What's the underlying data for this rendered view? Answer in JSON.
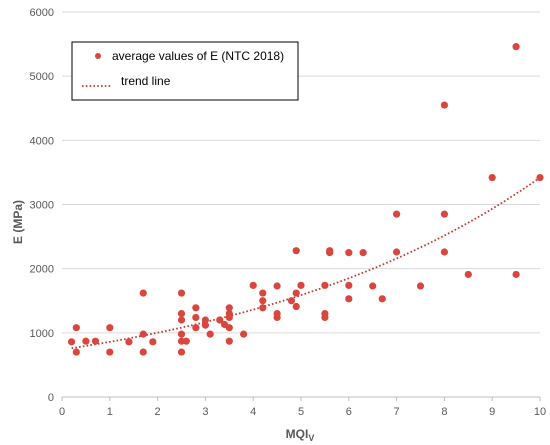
{
  "chart_data": {
    "type": "scatter",
    "xlabel": "MQI",
    "xlabel_sub": "V",
    "ylabel": "E    (MPa)",
    "xlim": [
      0,
      10
    ],
    "ylim": [
      0,
      6000
    ],
    "x_ticks": [
      0,
      1,
      2,
      3,
      4,
      5,
      6,
      7,
      8,
      9,
      10
    ],
    "y_ticks": [
      0,
      1000,
      2000,
      3000,
      4000,
      5000,
      6000
    ],
    "grid": "horizontal",
    "legend_placement": "top-left",
    "series": [
      {
        "name": "average values of E (NTC 2018)",
        "color": "#d9463e",
        "points": [
          [
            0.2,
            860
          ],
          [
            0.3,
            1080
          ],
          [
            0.3,
            700
          ],
          [
            0.5,
            870
          ],
          [
            0.7,
            870
          ],
          [
            1.0,
            1080
          ],
          [
            1.0,
            700
          ],
          [
            1.4,
            860
          ],
          [
            1.7,
            1620
          ],
          [
            1.7,
            980
          ],
          [
            1.7,
            700
          ],
          [
            1.9,
            860
          ],
          [
            2.5,
            1620
          ],
          [
            2.5,
            1300
          ],
          [
            2.5,
            1200
          ],
          [
            2.5,
            980
          ],
          [
            2.5,
            870
          ],
          [
            2.5,
            700
          ],
          [
            2.6,
            870
          ],
          [
            2.8,
            1390
          ],
          [
            2.8,
            1080
          ],
          [
            2.8,
            1240
          ],
          [
            3.0,
            1200
          ],
          [
            3.0,
            1120
          ],
          [
            3.1,
            980
          ],
          [
            3.3,
            1200
          ],
          [
            3.4,
            1130
          ],
          [
            3.5,
            1390
          ],
          [
            3.5,
            1300
          ],
          [
            3.5,
            1240
          ],
          [
            3.5,
            1080
          ],
          [
            3.5,
            870
          ],
          [
            3.8,
            980
          ],
          [
            4.0,
            1740
          ],
          [
            4.2,
            1620
          ],
          [
            4.2,
            1500
          ],
          [
            4.2,
            1390
          ],
          [
            4.5,
            1730
          ],
          [
            4.5,
            1300
          ],
          [
            4.5,
            1240
          ],
          [
            4.8,
            1500
          ],
          [
            4.9,
            1620
          ],
          [
            4.9,
            1410
          ],
          [
            4.9,
            2280
          ],
          [
            5.0,
            1740
          ],
          [
            5.5,
            1740
          ],
          [
            5.5,
            1300
          ],
          [
            5.5,
            1240
          ],
          [
            5.6,
            2280
          ],
          [
            5.6,
            2250
          ],
          [
            6.0,
            2250
          ],
          [
            6.0,
            1740
          ],
          [
            6.0,
            1530
          ],
          [
            6.3,
            2250
          ],
          [
            6.5,
            1730
          ],
          [
            6.7,
            1530
          ],
          [
            7.0,
            2850
          ],
          [
            7.0,
            2260
          ],
          [
            7.5,
            1730
          ],
          [
            8.0,
            4550
          ],
          [
            8.0,
            2850
          ],
          [
            8.0,
            2260
          ],
          [
            8.5,
            1910
          ],
          [
            9.0,
            3420
          ],
          [
            9.5,
            5460
          ],
          [
            9.5,
            1910
          ],
          [
            10.0,
            3420
          ]
        ]
      },
      {
        "name": "trend line",
        "color": "#c0392b",
        "style": "dotted",
        "fit": "exponential",
        "x_range": [
          0.2,
          10
        ],
        "y_at_x_min": 760,
        "y_at_x_max": 3420
      }
    ]
  }
}
